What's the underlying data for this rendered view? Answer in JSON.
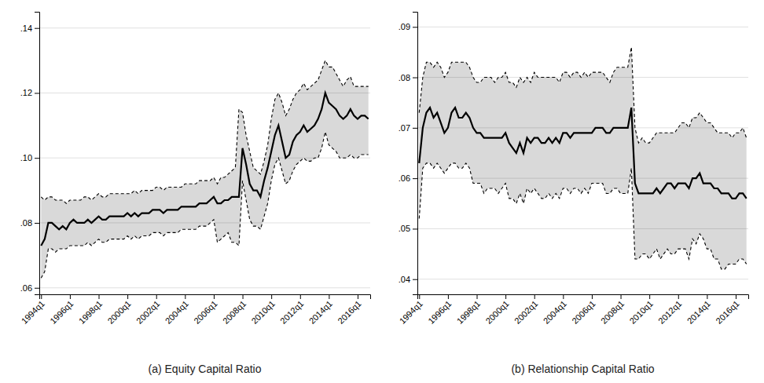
{
  "chart_data": [
    {
      "type": "line",
      "title": "(a) Equity Capital Ratio",
      "categories": [
        "1994q1",
        null,
        null,
        null,
        null,
        null,
        null,
        null,
        "1996q1",
        null,
        null,
        null,
        null,
        null,
        null,
        null,
        "1998q1",
        null,
        null,
        null,
        null,
        null,
        null,
        null,
        "2000q1",
        null,
        null,
        null,
        null,
        null,
        null,
        null,
        "2002q1",
        null,
        null,
        null,
        null,
        null,
        null,
        null,
        "2004q1",
        null,
        null,
        null,
        null,
        null,
        null,
        null,
        "2006q1",
        null,
        null,
        null,
        null,
        null,
        null,
        null,
        "2008q1",
        null,
        null,
        null,
        null,
        null,
        null,
        null,
        "2010q1",
        null,
        null,
        null,
        null,
        null,
        null,
        null,
        "2012q1",
        null,
        null,
        null,
        null,
        null,
        null,
        null,
        "2014q1",
        null,
        null,
        null,
        null,
        null,
        null,
        null,
        "2016q1",
        null,
        null,
        null
      ],
      "series": [
        {
          "color": "#000000",
          "line_style": "dashed",
          "values": [
            0.088,
            0.087,
            0.088,
            0.088,
            0.087,
            0.087,
            0.087,
            0.086,
            0.087,
            0.087,
            0.087,
            0.087,
            0.088,
            0.088,
            0.087,
            0.088,
            0.089,
            0.088,
            0.088,
            0.089,
            0.089,
            0.089,
            0.089,
            0.089,
            0.089,
            0.089,
            0.09,
            0.089,
            0.09,
            0.09,
            0.09,
            0.09,
            0.091,
            0.091,
            0.09,
            0.091,
            0.091,
            0.091,
            0.091,
            0.091,
            0.092,
            0.092,
            0.092,
            0.092,
            0.093,
            0.093,
            0.093,
            0.093,
            0.094,
            0.092,
            0.094,
            0.094,
            0.095,
            0.096,
            0.097,
            0.115,
            0.114,
            0.107,
            0.102,
            0.097,
            0.096,
            0.095,
            0.099,
            0.104,
            0.112,
            0.118,
            0.12,
            0.117,
            0.113,
            0.115,
            0.118,
            0.12,
            0.121,
            0.123,
            0.121,
            0.122,
            0.123,
            0.124,
            0.127,
            0.13,
            0.128,
            0.128,
            0.126,
            0.124,
            0.122,
            0.124,
            0.125,
            0.122,
            0.122,
            0.122,
            0.122,
            0.122
          ]
        },
        {
          "color": "#000000",
          "line_style": "dashed",
          "values": [
            0.063,
            0.065,
            0.072,
            0.072,
            0.071,
            0.072,
            0.072,
            0.072,
            0.073,
            0.073,
            0.073,
            0.073,
            0.073,
            0.074,
            0.073,
            0.074,
            0.075,
            0.074,
            0.074,
            0.075,
            0.075,
            0.075,
            0.075,
            0.075,
            0.076,
            0.075,
            0.076,
            0.075,
            0.076,
            0.076,
            0.076,
            0.077,
            0.077,
            0.077,
            0.076,
            0.077,
            0.077,
            0.077,
            0.077,
            0.078,
            0.078,
            0.078,
            0.078,
            0.078,
            0.079,
            0.079,
            0.079,
            0.08,
            0.081,
            0.074,
            0.075,
            0.076,
            0.077,
            0.074,
            0.074,
            0.073,
            0.093,
            0.087,
            0.081,
            0.079,
            0.079,
            0.078,
            0.082,
            0.086,
            0.093,
            0.098,
            0.1,
            0.096,
            0.092,
            0.093,
            0.096,
            0.098,
            0.099,
            0.1,
            0.099,
            0.099,
            0.1,
            0.1,
            0.103,
            0.108,
            0.104,
            0.103,
            0.102,
            0.1,
            0.1,
            0.1,
            0.101,
            0.1,
            0.1,
            0.101,
            0.101,
            0.101
          ]
        },
        {
          "color": "#000000",
          "line_style": "solid",
          "values": [
            0.073,
            0.075,
            0.08,
            0.08,
            0.079,
            0.078,
            0.079,
            0.078,
            0.08,
            0.081,
            0.08,
            0.08,
            0.08,
            0.081,
            0.08,
            0.081,
            0.082,
            0.081,
            0.081,
            0.082,
            0.082,
            0.082,
            0.082,
            0.082,
            0.083,
            0.082,
            0.083,
            0.082,
            0.083,
            0.083,
            0.083,
            0.084,
            0.084,
            0.084,
            0.083,
            0.084,
            0.084,
            0.084,
            0.084,
            0.085,
            0.085,
            0.085,
            0.085,
            0.085,
            0.086,
            0.086,
            0.086,
            0.087,
            0.088,
            0.086,
            0.086,
            0.087,
            0.087,
            0.088,
            0.088,
            0.088,
            0.103,
            0.098,
            0.092,
            0.09,
            0.09,
            0.088,
            0.093,
            0.097,
            0.102,
            0.107,
            0.11,
            0.105,
            0.1,
            0.101,
            0.105,
            0.107,
            0.108,
            0.11,
            0.108,
            0.109,
            0.11,
            0.112,
            0.115,
            0.12,
            0.117,
            0.116,
            0.115,
            0.113,
            0.112,
            0.113,
            0.115,
            0.113,
            0.112,
            0.113,
            0.113,
            0.112
          ]
        }
      ],
      "ylim": [
        0.058,
        0.145
      ],
      "yticks": [
        {
          "value": 0.06,
          "label": ".06"
        },
        {
          "value": 0.08,
          "label": ".08"
        },
        {
          "value": 0.1,
          "label": ".10"
        },
        {
          "value": 0.12,
          "label": ".12"
        },
        {
          "value": 0.14,
          "label": ".14"
        }
      ],
      "grid": true
    },
    {
      "type": "line",
      "title": "(b) Relationship Capital Ratio",
      "categories": [
        "1994q1",
        null,
        null,
        null,
        null,
        null,
        null,
        null,
        "1996q1",
        null,
        null,
        null,
        null,
        null,
        null,
        null,
        "1998q1",
        null,
        null,
        null,
        null,
        null,
        null,
        null,
        "2000q1",
        null,
        null,
        null,
        null,
        null,
        null,
        null,
        "2002q1",
        null,
        null,
        null,
        null,
        null,
        null,
        null,
        "2004q1",
        null,
        null,
        null,
        null,
        null,
        null,
        null,
        "2006q1",
        null,
        null,
        null,
        null,
        null,
        null,
        null,
        "2008q1",
        null,
        null,
        null,
        null,
        null,
        null,
        null,
        "2010q1",
        null,
        null,
        null,
        null,
        null,
        null,
        null,
        "2012q1",
        null,
        null,
        null,
        null,
        null,
        null,
        null,
        "2014q1",
        null,
        null,
        null,
        null,
        null,
        null,
        null,
        "2016q1",
        null,
        null,
        null
      ],
      "series": [
        {
          "color": "#000000",
          "line_style": "dashed",
          "values": [
            0.073,
            0.08,
            0.083,
            0.083,
            0.082,
            0.083,
            0.082,
            0.08,
            0.081,
            0.083,
            0.083,
            0.083,
            0.083,
            0.083,
            0.082,
            0.08,
            0.079,
            0.079,
            0.08,
            0.08,
            0.08,
            0.079,
            0.08,
            0.08,
            0.081,
            0.079,
            0.079,
            0.078,
            0.08,
            0.079,
            0.08,
            0.079,
            0.081,
            0.08,
            0.08,
            0.08,
            0.08,
            0.08,
            0.08,
            0.079,
            0.081,
            0.081,
            0.08,
            0.081,
            0.081,
            0.08,
            0.081,
            0.08,
            0.081,
            0.081,
            0.081,
            0.081,
            0.08,
            0.079,
            0.081,
            0.082,
            0.082,
            0.082,
            0.082,
            0.086,
            0.07,
            0.067,
            0.068,
            0.067,
            0.067,
            0.068,
            0.069,
            0.069,
            0.069,
            0.069,
            0.069,
            0.069,
            0.07,
            0.071,
            0.071,
            0.07,
            0.072,
            0.072,
            0.073,
            0.072,
            0.071,
            0.071,
            0.07,
            0.069,
            0.069,
            0.069,
            0.069,
            0.068,
            0.069,
            0.069,
            0.07,
            0.068
          ]
        },
        {
          "color": "#000000",
          "line_style": "dashed",
          "values": [
            0.052,
            0.062,
            0.063,
            0.063,
            0.062,
            0.063,
            0.062,
            0.061,
            0.062,
            0.063,
            0.063,
            0.062,
            0.062,
            0.063,
            0.062,
            0.059,
            0.059,
            0.059,
            0.057,
            0.058,
            0.058,
            0.058,
            0.057,
            0.058,
            0.059,
            0.056,
            0.056,
            0.055,
            0.057,
            0.055,
            0.058,
            0.057,
            0.058,
            0.057,
            0.056,
            0.056,
            0.057,
            0.056,
            0.057,
            0.056,
            0.058,
            0.058,
            0.057,
            0.058,
            0.058,
            0.057,
            0.058,
            0.057,
            0.059,
            0.059,
            0.059,
            0.059,
            0.057,
            0.057,
            0.058,
            0.058,
            0.057,
            0.057,
            0.057,
            0.062,
            0.044,
            0.044,
            0.045,
            0.045,
            0.044,
            0.045,
            0.046,
            0.044,
            0.045,
            0.046,
            0.045,
            0.045,
            0.046,
            0.046,
            0.046,
            0.044,
            0.048,
            0.047,
            0.049,
            0.048,
            0.046,
            0.046,
            0.044,
            0.044,
            0.042,
            0.042,
            0.043,
            0.043,
            0.043,
            0.044,
            0.044,
            0.043
          ]
        },
        {
          "color": "#000000",
          "line_style": "solid",
          "values": [
            0.063,
            0.07,
            0.073,
            0.074,
            0.072,
            0.073,
            0.071,
            0.069,
            0.07,
            0.073,
            0.074,
            0.072,
            0.072,
            0.073,
            0.072,
            0.07,
            0.069,
            0.069,
            0.068,
            0.068,
            0.068,
            0.068,
            0.068,
            0.068,
            0.069,
            0.067,
            0.066,
            0.065,
            0.067,
            0.065,
            0.068,
            0.067,
            0.068,
            0.068,
            0.067,
            0.067,
            0.068,
            0.067,
            0.068,
            0.067,
            0.069,
            0.069,
            0.068,
            0.069,
            0.069,
            0.069,
            0.069,
            0.069,
            0.069,
            0.07,
            0.07,
            0.07,
            0.069,
            0.069,
            0.07,
            0.07,
            0.07,
            0.07,
            0.07,
            0.074,
            0.059,
            0.057,
            0.057,
            0.057,
            0.057,
            0.057,
            0.058,
            0.057,
            0.058,
            0.059,
            0.059,
            0.058,
            0.059,
            0.059,
            0.059,
            0.058,
            0.06,
            0.06,
            0.061,
            0.059,
            0.059,
            0.059,
            0.058,
            0.058,
            0.057,
            0.057,
            0.057,
            0.056,
            0.056,
            0.057,
            0.057,
            0.056
          ]
        }
      ],
      "ylim": [
        0.037,
        0.093
      ],
      "yticks": [
        {
          "value": 0.04,
          "label": ".04"
        },
        {
          "value": 0.05,
          "label": ".05"
        },
        {
          "value": 0.06,
          "label": ".06"
        },
        {
          "value": 0.07,
          "label": ".07"
        },
        {
          "value": 0.08,
          "label": ".08"
        },
        {
          "value": 0.09,
          "label": ".09"
        }
      ],
      "grid": true
    }
  ]
}
